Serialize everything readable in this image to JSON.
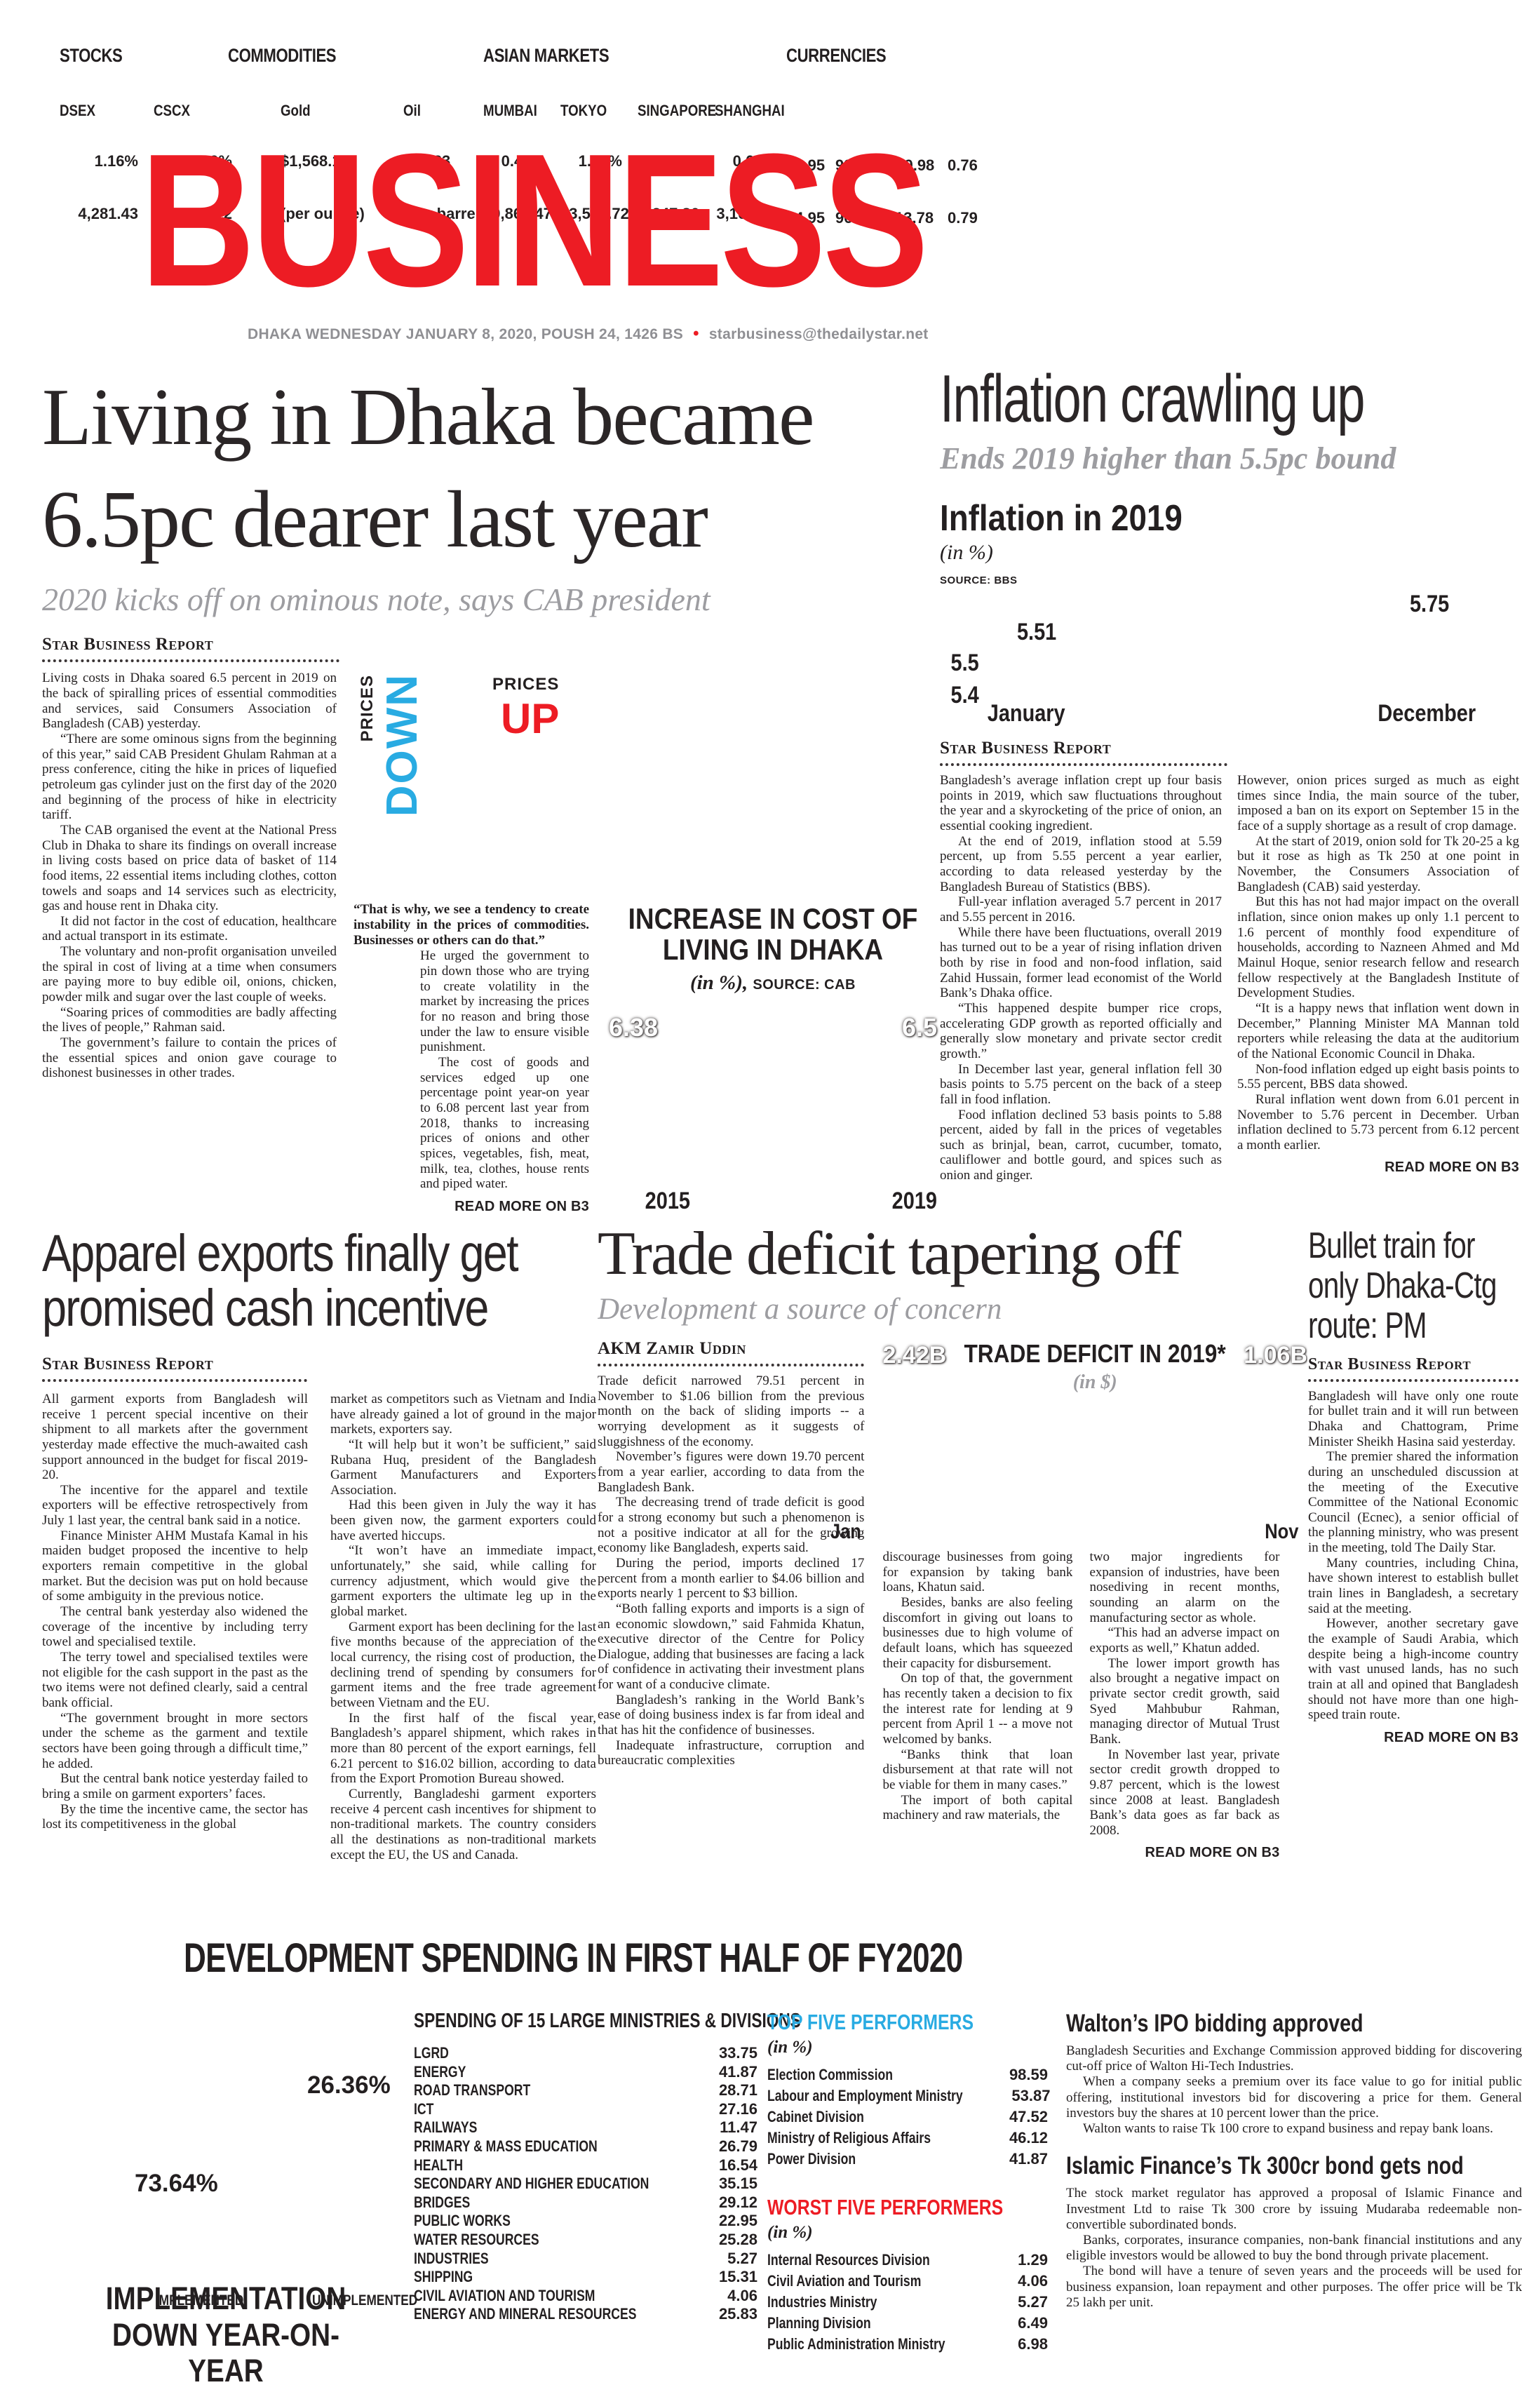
{
  "market_bar": {
    "stocks": {
      "title": "STOCKS",
      "items": [
        {
          "name": "DSEX",
          "pct": "1.16%",
          "value": "4,281.43"
        },
        {
          "name": "CSCX",
          "pct": "1.69%",
          "value": "7,881.22"
        }
      ]
    },
    "commodities": {
      "title": "COMMODITIES",
      "items": [
        {
          "name": "Gold",
          "pct": "$1,568.10",
          "value": "(per ounce)"
        },
        {
          "name": "Oil",
          "pct": "$68.23",
          "value": "(per barrel)"
        }
      ]
    },
    "asian_markets": {
      "title": "ASIAN MARKETS",
      "items": [
        {
          "name": "MUMBAI",
          "pct": "0.47%",
          "value": "40,869.47"
        },
        {
          "name": "TOKYO",
          "pct": "1.60%",
          "value": "23,575.72"
        },
        {
          "name": "SINGAPORE",
          "pct": "0.90%",
          "value": "3,247.86"
        },
        {
          "name": "SHANGHAI",
          "pct": "0.69%",
          "value": "3,104.80"
        }
      ]
    },
    "currencies": {
      "title": "CURRENCIES",
      "row1": [
        "83.95",
        "93.16",
        "109.98",
        "0.76"
      ],
      "row2": [
        "84.95",
        "96.96",
        "113.78",
        "0.79"
      ]
    }
  },
  "masthead": {
    "title": "BUSINESS",
    "dateline": "DHAKA WEDNESDAY JANUARY 8, 2020, POUSH 24, 1426 BS",
    "separator": "•",
    "email": "starbusiness@thedailystar.net"
  },
  "articles": {
    "main": {
      "headline": "Living in Dhaka became 6.5pc dearer last year",
      "subhead": "2020 kicks off on ominous note, says CAB president",
      "byline": "Star Business Report",
      "col1": [
        "Living costs in Dhaka soared 6.5 percent in 2019 on the back of spiralling prices of essential commodities and services, said Consumers Association of Bangladesh (CAB) yesterday.",
        "“There are some ominous signs from the beginning of this year,” said CAB President Ghulam Rahman at a press conference, citing the hike in prices of liquefied petroleum gas cylinder just on the first day of the 2020 and beginning of the process of hike in electricity tariff.",
        "The CAB organised the event at the National Press Club in Dhaka to share its findings on overall increase in living costs based on price data of basket of 114 food items, 22 essential items including clothes, cotton towels and soaps and 14 services such as electricity, gas and house rent in Dhaka city.",
        "It did not factor in the cost of education, healthcare and actual transport in its estimate.",
        "The voluntary and non-profit organisation unveiled the spiral in cost of living at a time when consumers are paying more to buy edible oil, onions, chicken, powder milk and sugar over the last couple of weeks.",
        "“Soaring prices of commodities are badly affecting the lives of people,” Rahman said.",
        "The government’s failure to contain the prices of the essential spices and onion gave courage to dishonest businesses in other trades."
      ],
      "quote": "“That is why, we see a tendency to create instability in the prices of commodities. Businesses or others can do that.”",
      "col2": [
        "He urged the government to pin down those who are trying to create volatility in the market by increasing the prices for no reason and bring those under the law to ensure visible punishment.",
        "The cost of goods and services edged up one percentage point year-on year to 6.08 percent last year from 2018, thanks to increasing prices of onions and other spices, vegetables, fish, meat, milk, tea, clothes, house rents and piped water."
      ],
      "readmore": "READ MORE ON B3"
    },
    "inflation": {
      "headline": "Inflation crawling up",
      "subhead": "Ends 2019 higher than 5.5pc bound",
      "byline": "Star Business Report",
      "col1": [
        "Bangladesh’s average inflation crept up four basis points in 2019, which saw fluctuations throughout the year and a skyrocketing of the price of onion, an essential cooking ingredient.",
        "At the end of 2019, inflation stood at 5.59 percent, up from 5.55 percent a year earlier, according to data released yesterday by the Bangladesh Bureau of Statistics (BBS).",
        "Full-year inflation averaged 5.7 percent in 2017 and 5.55 percent in 2016.",
        "While there have been fluctuations, overall 2019 has turned out to be a year of rising inflation driven both by rise in food and non-food inflation, said Zahid Hussain, former lead economist of the World Bank’s Dhaka office.",
        "“This happened despite bumper rice crops, accelerating GDP growth as reported officially and generally slow monetary and private sector credit growth.”",
        "In December last year, general inflation fell 30 basis points to 5.75 percent on the back of a steep fall in food inflation.",
        "Food inflation declined 53 basis points to 5.88 percent, aided by fall in the prices of vegetables such as brinjal, bean, carrot, cucumber, tomato, cauliflower and bottle gourd, and spices such as onion and ginger."
      ],
      "col2": [
        "However, onion prices surged as much as eight times since India, the main source of the tuber, imposed a ban on its export on September 15 in the face of a supply shortage as a result of crop damage.",
        "At the start of 2019, onion sold for Tk 20-25 a kg but it rose as high as Tk 250 at one point in November, the Consumers Association of Bangladesh (CAB) said yesterday.",
        "But this has not had major impact on the overall inflation, since onion makes up only 1.1 percent to 1.6 percent of monthly food expenditure of households, according to Nazneen Ahmed and Md Mainul Hoque, senior research fellow and research fellow respectively at the Bangladesh Institute of Development Studies.",
        "“It is a happy news that inflation went down in December,” Planning Minister MA Mannan told reporters while releasing the data at the auditorium of the National Economic Council in Dhaka.",
        "Non-food inflation edged up eight basis points to 5.55 percent, BBS data showed.",
        "Rural inflation went down from 6.01 percent in November to 5.76 percent in December. Urban inflation declined to 5.73 percent from 6.12 percent a month earlier."
      ],
      "readmore": "READ MORE ON B3"
    },
    "apparel": {
      "headline": "Apparel exports finally get promised cash incentive",
      "byline": "Star Business Report",
      "col1": [
        "All garment exports from Bangladesh will receive 1 percent special incentive on their shipment to all markets after the government yesterday made effective the much-awaited cash support announced in the budget for fiscal 2019-20.",
        "The incentive for the apparel and textile exporters will be effective retrospectively from July 1 last year, the central bank said in a notice.",
        "Finance Minister AHM Mustafa Kamal in his maiden budget proposed the incentive to help exporters remain competitive in the global market. But the decision was put on hold because of some ambiguity in the previous notice.",
        "The central bank yesterday also widened the coverage of the incentive by including terry towel and specialised textile.",
        "The terry towel and specialised textiles were not eligible for the cash support in the past as the two items were not defined clearly, said a central bank official.",
        "“The government brought in more sectors under the scheme as the garment and textile sectors have been going through a difficult time,” he added.",
        "But the central bank notice yesterday failed to bring a smile on garment exporters’ faces.",
        "By the time the incentive came, the sector has lost its competitiveness in the global"
      ],
      "col2": [
        "market as competitors such as Vietnam and India have already gained a lot of ground in the major markets, exporters say.",
        "“It will help but it won’t be sufficient,” said Rubana Huq, president of the Bangladesh Garment Manufacturers and Exporters Association.",
        "Had this been given in July the way it has been given now, the garment exporters could have averted hiccups.",
        "“It won’t have an immediate impact, unfortunately,” she said, while calling for currency adjustment, which would give the garment exporters the ultimate leg up in the global market.",
        "Garment export has been declining for the last five months because of the appreciation of the local currency, the rising cost of production, the declining trend of spending by consumers for garment items and the free trade agreement between Vietnam and the EU.",
        "In the first half of the fiscal year, Bangladesh’s apparel shipment, which rakes in more than 80 percent of the export earnings, fell 6.21 percent to $16.02 billion, according to data from the Export Promotion Bureau showed.",
        "Currently, Bangladeshi garment exporters receive 4 percent cash incentives for shipment to non-traditional markets. The country considers all the destinations as non-traditional markets except the EU, the US and Canada."
      ]
    },
    "trade": {
      "headline": "Trade deficit tapering off",
      "subhead": "Development a source of concern",
      "byline": "AKM Zamir Uddin",
      "col1": [
        "Trade deficit narrowed 79.51 percent in November to $1.06 billion from the previous month on the back of sliding imports -- a worrying development as it suggests of sluggishness of the economy.",
        "November’s figures were down 19.70 percent from a year earlier, according to data from the Bangladesh Bank.",
        "The decreasing trend of trade deficit is good for a strong economy but such a phenomenon is not a positive indicator at all for the growing economy like Bangladesh, experts said.",
        "During the period, imports declined 17 percent from a month earlier to $4.06 billion and exports nearly 1 percent to $3 billion.",
        "“Both falling exports and imports is a sign of an economic slowdown,” said Fahmida Khatun, executive director of the Centre for Policy Dialogue, adding that businesses are facing a lack of confidence in activating their investment plans for want of a conducive climate.",
        "Bangladesh’s ranking in the World Bank’s ease of doing business index is far from ideal and that has hit the confidence of businesses.",
        "Inadequate infrastructure, corruption and bureaucratic complexities"
      ],
      "col2": [
        "discourage businesses from going for expansion by taking bank loans, Khatun said.",
        "Besides, banks are also feeling discomfort in giving out loans to businesses due to high volume of default loans, which has squeezed their capacity for disbursement.",
        "On top of that, the government has recently taken a decision to fix the interest rate for lending at 9 percent from April 1 -- a move not welcomed by banks.",
        "“Banks think that loan disbursement at that rate will not be viable for them in many cases.”",
        "The import of both capital machinery and raw materials, the"
      ],
      "col3": [
        "two major ingredients for expansion of industries, have been nosediving in recent months, sounding an alarm on the manufacturing sector as whole.",
        "“This had an adverse impact on exports as well,” Khatun added.",
        "The lower import growth has also brought a negative impact on private sector credit growth, said Syed Mahbubur Rahman, managing director of Mutual Trust Bank.",
        "In November last year, private sector credit growth dropped to 9.87 percent, which is the lowest since 2008 at least. Bangladesh Bank’s data goes as far back as 2008."
      ],
      "readmore": "READ MORE ON B3"
    },
    "bullet": {
      "headline": "Bullet train for only Dhaka-Ctg route: PM",
      "byline": "Star Business Report",
      "paragraphs": [
        "Bangladesh will have only one route for bullet train and it will run between Dhaka and Chattogram, Prime Minister Sheikh Hasina said yesterday.",
        "The premier shared the information during an unscheduled discussion at the meeting of the Executive Committee of the National Economic Council (Ecnec), a senior official of the planning ministry, who was present in the meeting, told The Daily Star.",
        "Many countries, including China, have shown interest to establish bullet train lines in Bangladesh, a secretary said at the meeting.",
        "However, another secretary gave the example of Saudi Arabia, which despite being a high-income country with vast unused lands, has no such train at all and opined that Bangladesh should not have more than one high-speed train route."
      ],
      "readmore": "READ MORE ON B3"
    }
  },
  "graphics": {
    "prices": {
      "down_small": "PRICES",
      "down_word": "DOWN",
      "up_small": "PRICES",
      "up_word": "UP",
      "down_color": "#29abe2",
      "up_color": "#ed1c24"
    },
    "living_chart": {
      "title": "INCREASE IN COST OF LIVING IN DHAKA",
      "unit": "(in %),",
      "source": "SOURCE: CAB",
      "left_value": "6.38",
      "right_value": "6.5",
      "left_year": "2015",
      "right_year": "2019"
    },
    "inflation_chart": {
      "title": "Inflation in 2019",
      "unit": "(in %)",
      "source": "SOURCE: BBS",
      "jan_value": "5.51",
      "dec_value": "5.75",
      "ytick1": "5.5",
      "ytick2": "5.4",
      "x_start": "January",
      "x_end": "December"
    },
    "trade_chart": {
      "title": "TRADE DEFICIT IN 2019*",
      "unit": "(in $)",
      "left_value": "2.42B",
      "right_value": "1.06B",
      "x_start": "Jan",
      "x_end": "Nov"
    }
  },
  "development": {
    "title": "DEVELOPMENT SPENDING IN FIRST HALF OF FY2020",
    "pie": {
      "implemented_pct": "26.36%",
      "unimplemented_pct": "73.64%",
      "legend": [
        "IMPLEMENTED",
        "UNIMPLEMENTED"
      ],
      "caption": "IMPLEMENTATION DOWN YEAR-ON-YEAR"
    },
    "ministries": {
      "title": "SPENDING OF 15 LARGE MINISTRIES & DIVISIONS",
      "rows": [
        {
          "label": "LGRD",
          "value": "33.75"
        },
        {
          "label": "ENERGY",
          "value": "41.87"
        },
        {
          "label": "ROAD TRANSPORT",
          "value": "28.71"
        },
        {
          "label": "ICT",
          "value": "27.16"
        },
        {
          "label": "RAILWAYS",
          "value": "11.47"
        },
        {
          "label": "PRIMARY & MASS EDUCATION",
          "value": "26.79"
        },
        {
          "label": "HEALTH",
          "value": "16.54"
        },
        {
          "label": "SECONDARY AND HIGHER EDUCATION",
          "value": "35.15"
        },
        {
          "label": "BRIDGES",
          "value": "29.12"
        },
        {
          "label": "PUBLIC WORKS",
          "value": "22.95"
        },
        {
          "label": "WATER RESOURCES",
          "value": "25.28"
        },
        {
          "label": "INDUSTRIES",
          "value": "5.27"
        },
        {
          "label": "SHIPPING",
          "value": "15.31"
        },
        {
          "label": "CIVIL AVIATION AND TOURISM",
          "value": "4.06"
        },
        {
          "label": "ENERGY AND MINERAL RESOURCES",
          "value": "25.83"
        }
      ]
    },
    "top_five": {
      "title": "TOP FIVE PERFORMERS",
      "unit": "(in %)",
      "rows": [
        {
          "label": "Election Commission",
          "value": "98.59"
        },
        {
          "label": "Labour and Employment Ministry",
          "value": "53.87"
        },
        {
          "label": "Cabinet Division",
          "value": "47.52"
        },
        {
          "label": "Ministry of Religious Affairs",
          "value": "46.12"
        },
        {
          "label": "Power Division",
          "value": "41.87"
        }
      ]
    },
    "worst_five": {
      "title": "WORST FIVE PERFORMERS",
      "unit": "(in %)",
      "rows": [
        {
          "label": "Internal Resources Division",
          "value": "1.29"
        },
        {
          "label": "Civil Aviation and Tourism",
          "value": "4.06"
        },
        {
          "label": "Industries Ministry",
          "value": "5.27"
        },
        {
          "label": "Planning Division",
          "value": "6.49"
        },
        {
          "label": "Public Administration Ministry",
          "value": "6.98"
        }
      ]
    },
    "walton": {
      "headline": "Walton’s IPO bidding approved",
      "paragraphs": [
        "Bangladesh Securities and Exchange Commission approved bidding for discovering cut-off price of Walton Hi-Tech Industries.",
        "When a company seeks a premium over its face value to go for initial public offering, institutional investors bid for discovering a price for them. General investors buy the shares at 10 percent lower than the price.",
        "Walton wants to raise Tk 100 crore to expand business and repay bank loans."
      ]
    },
    "islamic": {
      "headline": "Islamic Finance’s Tk 300cr bond gets nod",
      "paragraphs": [
        "The stock market regulator has approved a proposal of Islamic Finance and Investment Ltd to raise Tk 300 crore by issuing Mudaraba redeemable non-convertible subordinated bonds.",
        "Banks, corporates, insurance companies, non-bank financial institutions and any eligible investors would be allowed to buy the bond through private placement.",
        "The bond will have a tenure of seven years and the proceeds will be used for business expansion, loan repayment and other purposes. The offer price will be Tk 25 lakh per unit."
      ]
    }
  }
}
